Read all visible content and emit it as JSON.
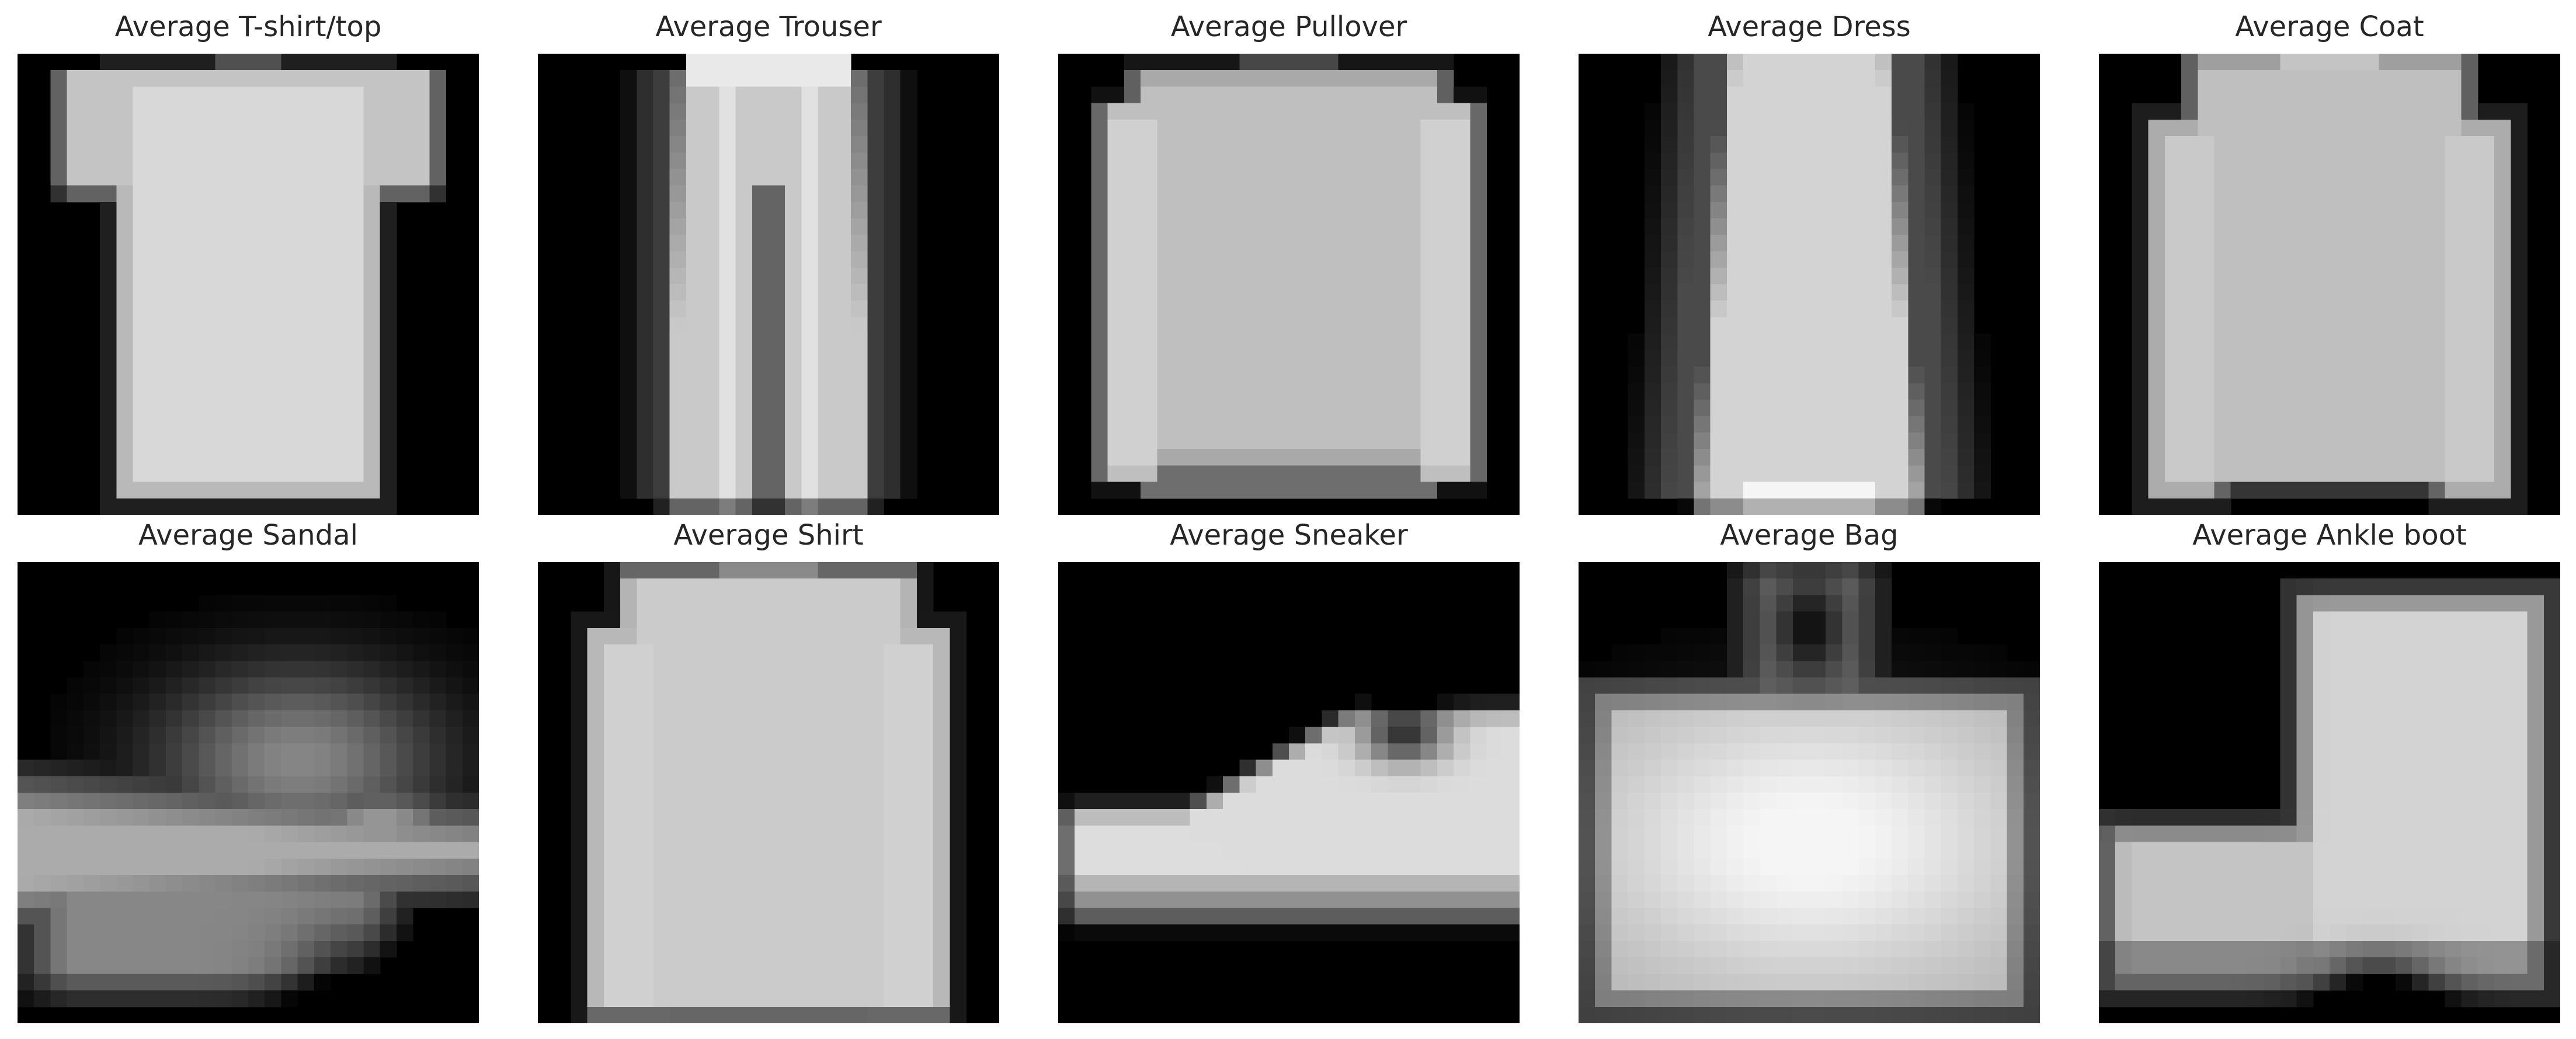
{
  "figure": {
    "panels": [
      {
        "title": "Average T-shirt/top",
        "icon": "average-tshirt-top-image"
      },
      {
        "title": "Average Trouser",
        "icon": "average-trouser-image"
      },
      {
        "title": "Average Pullover",
        "icon": "average-pullover-image"
      },
      {
        "title": "Average Dress",
        "icon": "average-dress-image"
      },
      {
        "title": "Average Coat",
        "icon": "average-coat-image"
      },
      {
        "title": "Average Sandal",
        "icon": "average-sandal-image"
      },
      {
        "title": "Average Shirt",
        "icon": "average-shirt-image"
      },
      {
        "title": "Average Sneaker",
        "icon": "average-sneaker-image"
      },
      {
        "title": "Average Bag",
        "icon": "average-bag-image"
      },
      {
        "title": "Average Ankle boot",
        "icon": "average-ankle-boot-image"
      }
    ],
    "colors": {
      "background": "#ffffff",
      "image_background": "#000000",
      "title_text": "#262626"
    }
  }
}
